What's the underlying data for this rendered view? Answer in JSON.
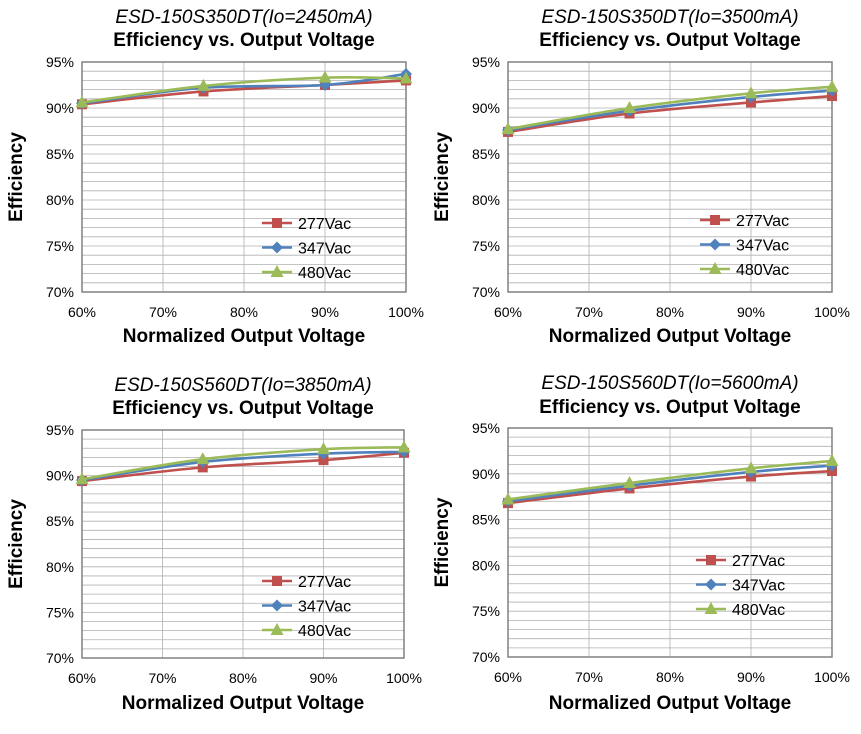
{
  "chart_data": [
    {
      "type": "line",
      "subtitle": "ESD-150S350DT(Io=2450mA)",
      "title": "Efficiency vs. Output Voltage",
      "xlabel": "Normalized Output Voltage",
      "ylabel": "Efficiency",
      "x": [
        60,
        75,
        90,
        100
      ],
      "xticks": [
        "60%",
        "70%",
        "80%",
        "90%",
        "100%"
      ],
      "yticks": [
        "70%",
        "75%",
        "80%",
        "85%",
        "90%",
        "95%"
      ],
      "xlim": [
        60,
        100
      ],
      "ylim": [
        70,
        95
      ],
      "series": [
        {
          "name": "277Vac",
          "values": [
            90.4,
            91.8,
            92.5,
            93.0
          ]
        },
        {
          "name": "347Vac",
          "values": [
            90.5,
            92.2,
            92.5,
            93.7
          ]
        },
        {
          "name": "480Vac",
          "values": [
            90.6,
            92.4,
            93.3,
            93.2
          ]
        }
      ]
    },
    {
      "type": "line",
      "subtitle": "ESD-150S350DT(Io=3500mA)",
      "title": "Efficiency vs. Output Voltage",
      "xlabel": "Normalized Output Voltage",
      "ylabel": "Efficiency",
      "x": [
        60,
        75,
        90,
        100
      ],
      "xticks": [
        "60%",
        "70%",
        "80%",
        "90%",
        "100%"
      ],
      "yticks": [
        "70%",
        "75%",
        "80%",
        "85%",
        "90%",
        "95%"
      ],
      "xlim": [
        60,
        100
      ],
      "ylim": [
        70,
        95
      ],
      "series": [
        {
          "name": "277Vac",
          "values": [
            87.4,
            89.4,
            90.6,
            91.3
          ]
        },
        {
          "name": "347Vac",
          "values": [
            87.6,
            89.7,
            91.2,
            91.9
          ]
        },
        {
          "name": "480Vac",
          "values": [
            87.7,
            90.0,
            91.6,
            92.3
          ]
        }
      ]
    },
    {
      "type": "line",
      "subtitle": "ESD-150S560DT(Io=3850mA)",
      "title": "Efficiency vs. Output Voltage",
      "xlabel": "Normalized Output Voltage",
      "ylabel": "Efficiency",
      "x": [
        60,
        75,
        90,
        100
      ],
      "xticks": [
        "60%",
        "70%",
        "80%",
        "90%",
        "100%"
      ],
      "yticks": [
        "70%",
        "75%",
        "80%",
        "85%",
        "90%",
        "95%"
      ],
      "xlim": [
        60,
        100
      ],
      "ylim": [
        70,
        95
      ],
      "series": [
        {
          "name": "277Vac",
          "values": [
            89.4,
            90.9,
            91.7,
            92.5
          ]
        },
        {
          "name": "347Vac",
          "values": [
            89.5,
            91.5,
            92.4,
            92.6
          ]
        },
        {
          "name": "480Vac",
          "values": [
            89.6,
            91.8,
            92.9,
            93.1
          ]
        }
      ]
    },
    {
      "type": "line",
      "subtitle": "ESD-150S560DT(Io=5600mA)",
      "title": "Efficiency vs. Output Voltage",
      "xlabel": "Normalized Output Voltage",
      "ylabel": "Efficiency",
      "x": [
        60,
        75,
        90,
        100
      ],
      "xticks": [
        "60%",
        "70%",
        "80%",
        "90%",
        "100%"
      ],
      "yticks": [
        "70%",
        "75%",
        "80%",
        "85%",
        "90%",
        "95%"
      ],
      "xlim": [
        60,
        100
      ],
      "ylim": [
        70,
        95
      ],
      "series": [
        {
          "name": "277Vac",
          "values": [
            86.8,
            88.4,
            89.7,
            90.3
          ]
        },
        {
          "name": "347Vac",
          "values": [
            87.0,
            88.7,
            90.2,
            90.9
          ]
        },
        {
          "name": "480Vac",
          "values": [
            87.2,
            89.0,
            90.6,
            91.4
          ]
        }
      ]
    }
  ],
  "colors": {
    "277Vac": "#c0504d",
    "347Vac": "#4f81bd",
    "480Vac": "#9bbb59",
    "grid": "#b0b0b0",
    "frame": "#808080"
  },
  "markers": {
    "277Vac": "square",
    "347Vac": "diamond",
    "480Vac": "triangle"
  }
}
